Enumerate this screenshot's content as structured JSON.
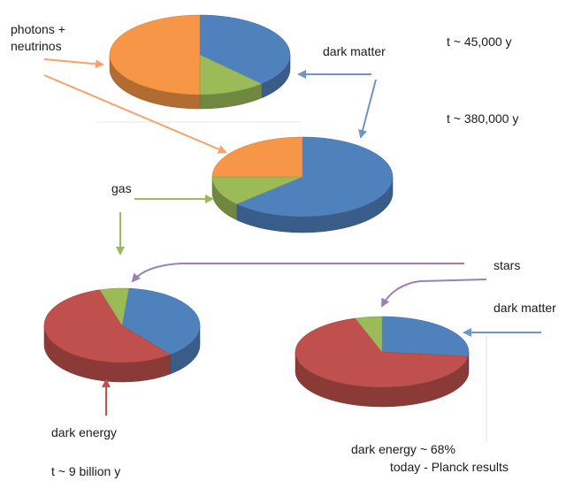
{
  "labels": {
    "photons_neutrinos_line1": "photons +",
    "photons_neutrinos_line2": "neutrinos",
    "dark_matter_top": "dark matter",
    "t_45000": "t ~ 45,000 y",
    "t_380000": "t ~ 380,000 y",
    "gas": "gas",
    "stars": "stars",
    "dark_matter_right": "dark matter",
    "dark_energy_left": "dark energy",
    "t_9billion": "t ~ 9 billion y",
    "dark_energy_68": "dark energy ~ 68%",
    "today_planck": "today  -  Planck results"
  },
  "colors": {
    "dark_matter": "#4f81bd",
    "photons_neutrinos": "#f79646",
    "gas": "#9bbb59",
    "dark_energy": "#c0504d",
    "stars": "#8064a2",
    "arrow_orange": "#f5a36a",
    "arrow_blue": "#6f94c6",
    "arrow_green": "#9bbb59",
    "arrow_purple": "#9a80b8",
    "arrow_red": "#c0504d"
  },
  "chart_data": [
    {
      "type": "pie",
      "epoch": "t ~ 45,000 y",
      "slices": [
        {
          "component": "dark matter",
          "value": 0.38,
          "color": "#4f81bd"
        },
        {
          "component": "gas",
          "value": 0.12,
          "color": "#9bbb59"
        },
        {
          "component": "photons + neutrinos",
          "value": 0.5,
          "color": "#f79646"
        }
      ]
    },
    {
      "type": "pie",
      "epoch": "t ~ 380,000 y",
      "slices": [
        {
          "component": "dark matter",
          "value": 0.63,
          "color": "#4f81bd"
        },
        {
          "component": "gas",
          "value": 0.12,
          "color": "#9bbb59"
        },
        {
          "component": "photons + neutrinos",
          "value": 0.25,
          "color": "#f79646"
        }
      ]
    },
    {
      "type": "pie",
      "epoch": "t ~ 9 billion y",
      "slices": [
        {
          "component": "dark matter",
          "value": 0.38,
          "color": "#4f81bd"
        },
        {
          "component": "dark energy",
          "value": 0.56,
          "color": "#c0504d"
        },
        {
          "component": "gas",
          "value": 0.06,
          "color": "#9bbb59"
        }
      ]
    },
    {
      "type": "pie",
      "epoch": "today - Planck results",
      "slices": [
        {
          "component": "dark matter",
          "value": 0.27,
          "color": "#4f81bd"
        },
        {
          "component": "dark energy",
          "value": 0.68,
          "color": "#c0504d"
        },
        {
          "component": "gas",
          "value": 0.05,
          "color": "#9bbb59"
        }
      ]
    }
  ]
}
